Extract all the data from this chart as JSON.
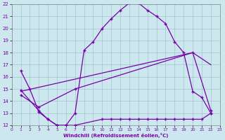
{
  "background_color": "#cce8ee",
  "line_color": "#7700aa",
  "grid_color": "#99bbcc",
  "xlim": [
    0,
    23
  ],
  "ylim": [
    12,
    22
  ],
  "xticks": [
    0,
    1,
    2,
    3,
    4,
    5,
    6,
    7,
    8,
    9,
    10,
    11,
    12,
    13,
    14,
    15,
    16,
    17,
    18,
    19,
    20,
    21,
    22,
    23
  ],
  "yticks": [
    12,
    13,
    14,
    15,
    16,
    17,
    18,
    19,
    20,
    21,
    22
  ],
  "xlabel": "Windchill (Refroidissement éolien,°C)",
  "curve1_x": [
    1,
    2,
    3,
    4,
    5,
    6,
    7,
    8,
    9,
    10,
    11,
    12,
    13,
    14,
    15,
    16,
    17,
    18,
    19,
    20,
    21,
    22
  ],
  "curve1_y": [
    16.5,
    15.0,
    13.1,
    12.5,
    12.0,
    12.0,
    13.0,
    18.2,
    18.9,
    20.0,
    20.8,
    21.5,
    22.1,
    22.1,
    21.5,
    21.0,
    20.4,
    18.9,
    18.0,
    14.8,
    14.3,
    13.0
  ],
  "curve2_x": [
    1,
    3,
    4,
    5,
    6,
    7,
    10,
    11,
    12,
    13,
    14,
    15,
    16,
    17,
    18,
    19,
    20,
    21,
    22
  ],
  "curve2_y": [
    14.9,
    13.2,
    12.5,
    12.0,
    12.0,
    12.0,
    12.5,
    12.5,
    12.5,
    12.5,
    12.5,
    12.5,
    12.5,
    12.5,
    12.5,
    12.5,
    12.5,
    12.5,
    13.0
  ],
  "curve3_x": [
    1,
    3,
    7,
    20,
    22
  ],
  "curve3_y": [
    14.5,
    13.5,
    15.0,
    18.0,
    13.2
  ],
  "curve4_x": [
    1,
    20,
    22
  ],
  "curve4_y": [
    14.8,
    18.0,
    17.0
  ]
}
